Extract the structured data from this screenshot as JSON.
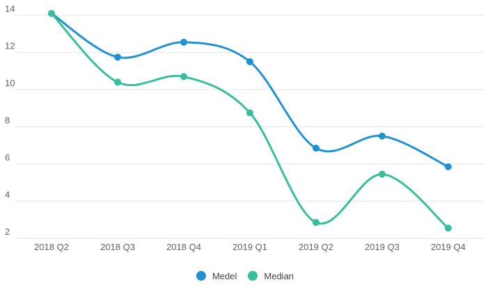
{
  "chart_data": {
    "type": "line",
    "curve": "smooth",
    "title": "",
    "xlabel": "",
    "ylabel": "",
    "categories": [
      "2018 Q2",
      "2018 Q3",
      "2018 Q4",
      "2019 Q1",
      "2019 Q2",
      "2019 Q3",
      "2019 Q4"
    ],
    "series": [
      {
        "name": "Medel",
        "color": "#2191d0",
        "values": [
          14.1,
          11.75,
          12.55,
          11.5,
          6.85,
          7.5,
          5.85
        ]
      },
      {
        "name": "Median",
        "color": "#38bd9d",
        "values": [
          14.1,
          10.4,
          10.7,
          8.75,
          2.85,
          5.45,
          2.55
        ]
      }
    ],
    "yticks": [
      2,
      4,
      6,
      8,
      10,
      12,
      14
    ],
    "ylim": [
      2,
      14
    ],
    "grid": "horizontal",
    "gridline_color": "#e6e6e6",
    "axis_label_color": "#616161",
    "legend_position": "bottom-center",
    "marker": "circle"
  }
}
